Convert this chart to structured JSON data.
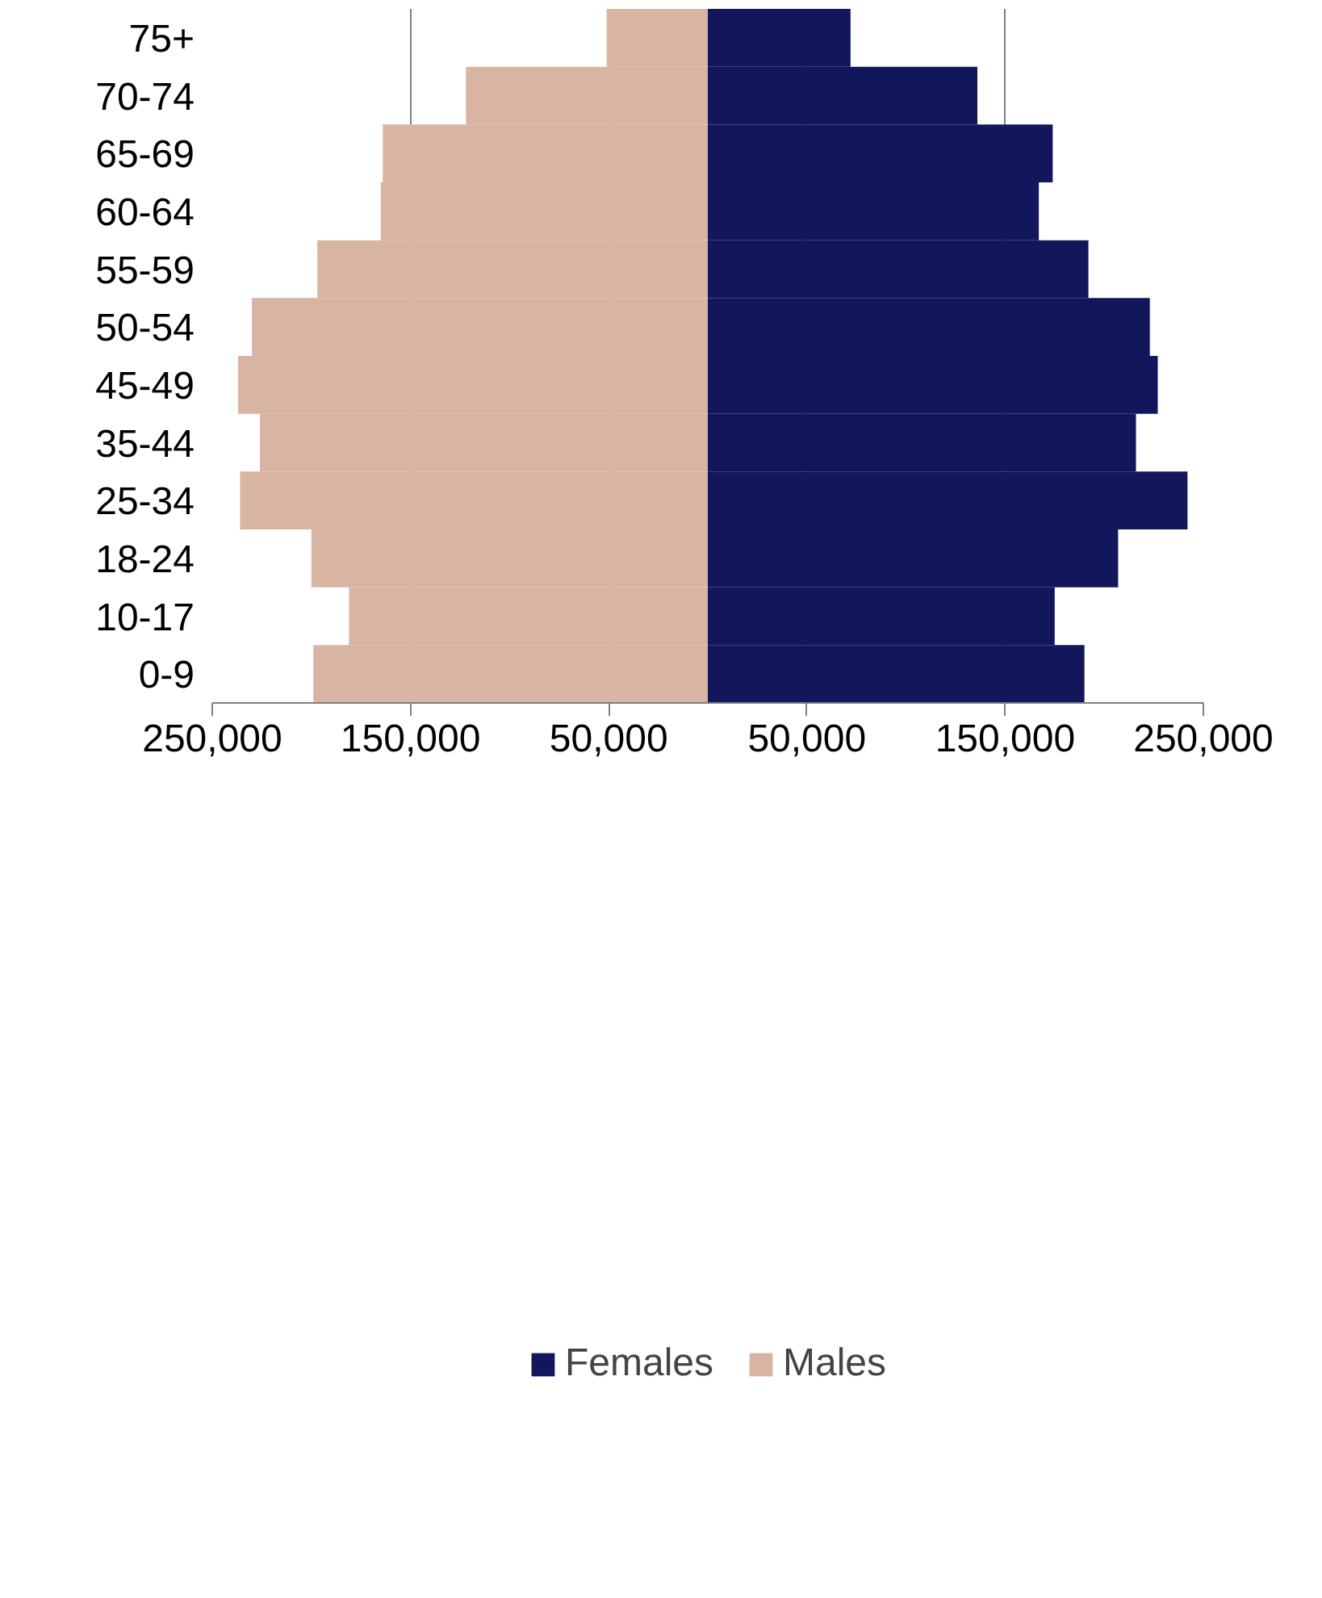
{
  "chart_data": {
    "type": "bar",
    "orientation": "horizontal",
    "stacked": true,
    "categories": [
      "75+",
      "70-74",
      "65-69",
      "60-64",
      "55-59",
      "50-54",
      "45-49",
      "35-44",
      "25-34",
      "18-24",
      "10-17",
      "0-9"
    ],
    "series": [
      {
        "name": "Females",
        "color": "#12175c",
        "values": [
          72000,
          136000,
          174000,
          167000,
          192000,
          223000,
          227000,
          216000,
          242000,
          207000,
          175000,
          190000
        ]
      },
      {
        "name": "Males",
        "color": "#d8b5a2",
        "values": [
          -51000,
          -122000,
          -164000,
          -165000,
          -197000,
          -230000,
          -237000,
          -226000,
          -236000,
          -200000,
          -181000,
          -199000
        ]
      }
    ],
    "xlim": [
      -250000,
      250000
    ],
    "xticks": [
      {
        "value": -250000,
        "label": "250,000"
      },
      {
        "value": -150000,
        "label": "150,000"
      },
      {
        "value": -50000,
        "label": "50,000"
      },
      {
        "value": 50000,
        "label": "50,000"
      },
      {
        "value": 150000,
        "label": "150,000"
      },
      {
        "value": 250000,
        "label": "250,000"
      }
    ],
    "grid": "x",
    "legend": "bottom"
  }
}
